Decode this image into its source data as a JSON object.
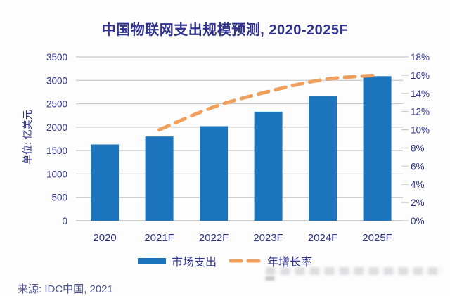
{
  "title": "中国物联网支出规模预测, 2020-2025F",
  "source_note": "来源: IDC中国, 2021",
  "colors": {
    "text_navy": "#31338e",
    "bar_blue": "#1c75bc",
    "line_orange": "#efa05c",
    "grid_gray": "#c9c9c9",
    "axis_gray": "#b3b3b3",
    "background": "#fdfdfd"
  },
  "chart_data": {
    "type": "bar",
    "title": "中国物联网支出规模预测, 2020-2025F",
    "categories": [
      "2020",
      "2021F",
      "2022F",
      "2023F",
      "2024F",
      "2025F"
    ],
    "series": [
      {
        "name": "市场支出",
        "kind": "bar",
        "axis": "left",
        "values": [
          1630,
          1800,
          2020,
          2330,
          2670,
          3090
        ],
        "color": "#1c75bc"
      },
      {
        "name": "年增长率",
        "kind": "dashed-line",
        "axis": "right",
        "values": [
          null,
          10,
          12.5,
          14.2,
          15.5,
          16
        ],
        "color": "#efa05c"
      }
    ],
    "ylabel": "单位: 亿美元",
    "xlabel": "",
    "ylim": [
      0,
      3500
    ],
    "y_tick_step": 500,
    "y_tick_labels": [
      "0",
      "500",
      "1000",
      "1500",
      "2000",
      "2500",
      "3000",
      "3500"
    ],
    "y2lim": [
      0,
      18
    ],
    "y2_tick_step": 2,
    "y2_tick_labels": [
      "0%",
      "2%",
      "4%",
      "6%",
      "8%",
      "10%",
      "12%",
      "14%",
      "16%",
      "18%"
    ],
    "grid": true,
    "legend_position": "bottom"
  }
}
